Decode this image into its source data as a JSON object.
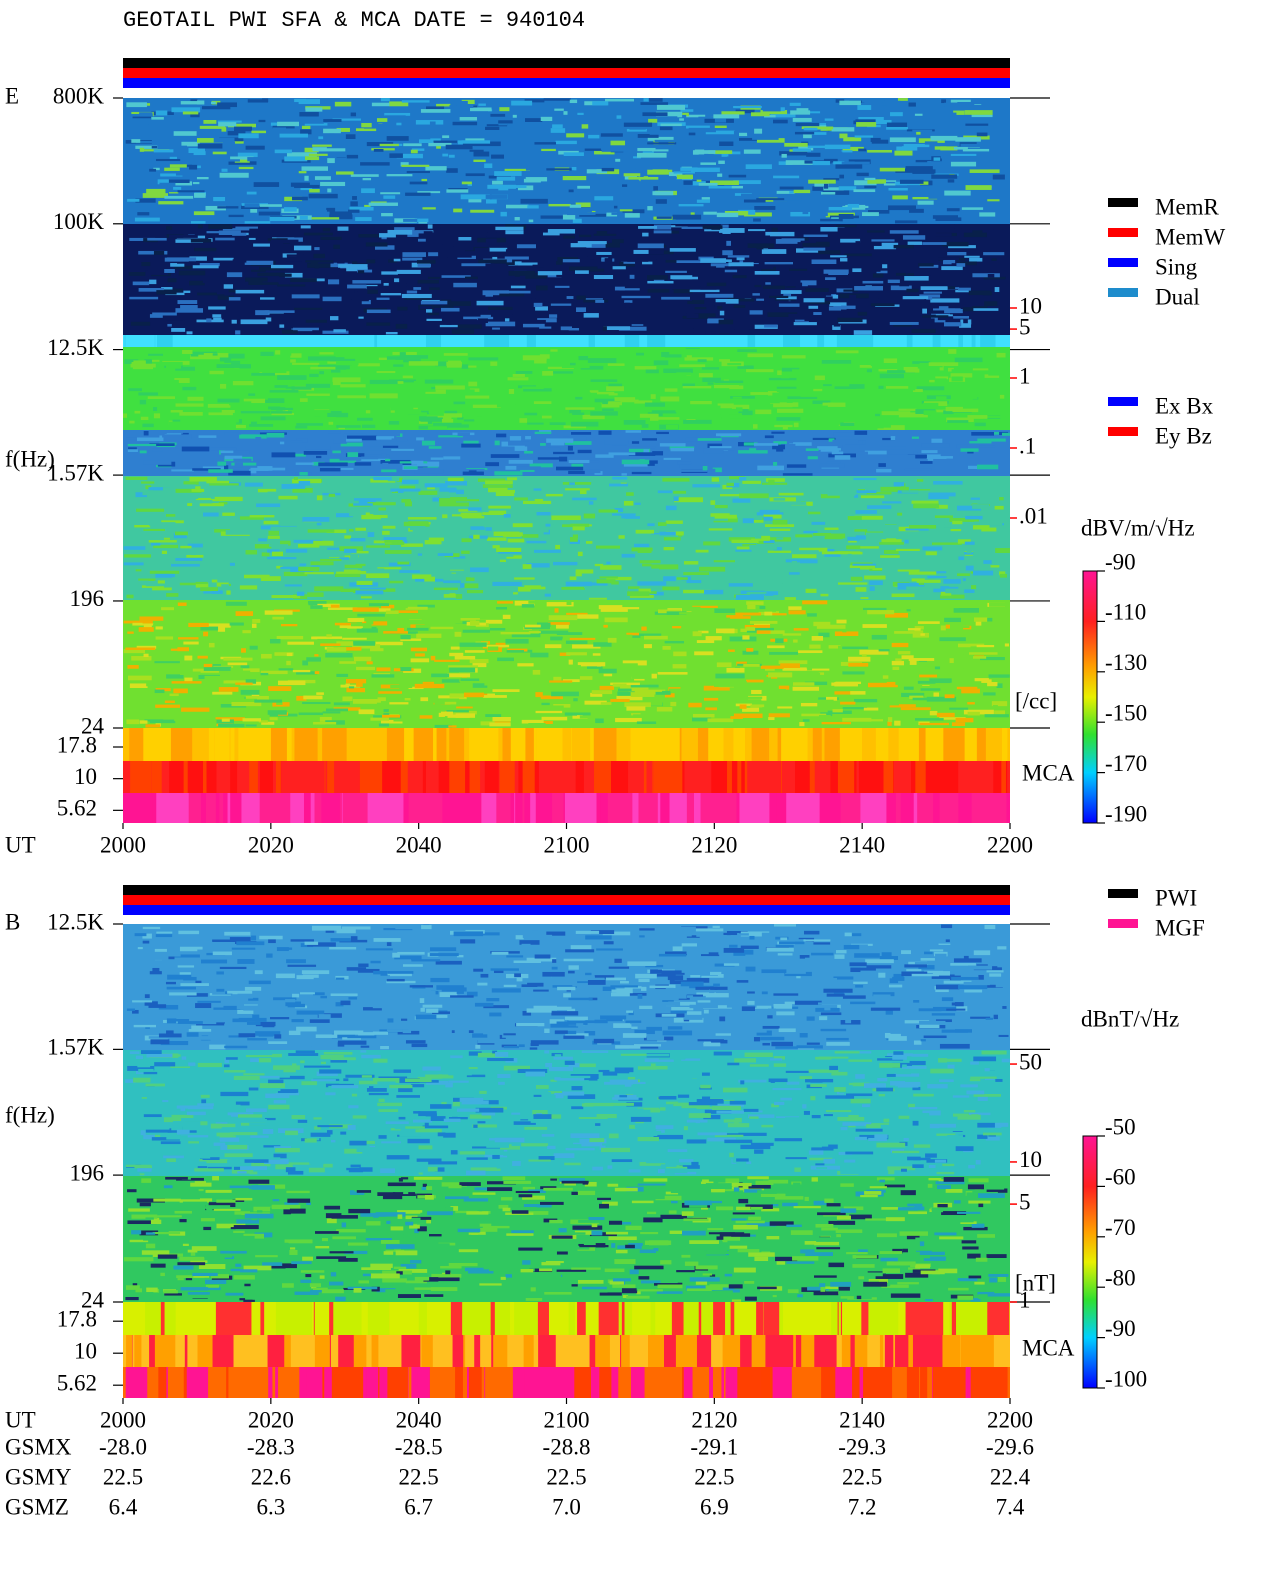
{
  "title": "GEOTAIL  PWI SFA & MCA   DATE = 940104",
  "chart_data": [
    {
      "type": "spectrogram",
      "panel_label": "E",
      "y_label": "f(Hz)",
      "x_label": "UT",
      "log_y": true,
      "ylim": [
        24,
        800000
      ],
      "yticks": [
        {
          "value": 800000,
          "label": "800K"
        },
        {
          "value": 100000,
          "label": "100K"
        },
        {
          "value": 12500,
          "label": "12.5K"
        },
        {
          "value": 1570,
          "label": "1.57K"
        },
        196,
        24
      ],
      "mca_label": "MCA",
      "mca_channels": [
        17.8,
        10,
        5.62
      ],
      "xlim": [
        0,
        120
      ],
      "xticks": [
        {
          "value": 0,
          "label": "2000"
        },
        {
          "value": 20,
          "label": "2020"
        },
        {
          "value": 40,
          "label": "2040"
        },
        {
          "value": 60,
          "label": "2100"
        },
        {
          "value": 80,
          "label": "2120"
        },
        {
          "value": 100,
          "label": "2140"
        },
        {
          "value": 120,
          "label": "2200"
        }
      ],
      "y2lim": [
        1e-05,
        10000
      ],
      "y2ticks": [
        10,
        5,
        1,
        {
          "value": 0.1,
          "label": ".1"
        },
        {
          "value": 0.01,
          "label": ".01"
        }
      ],
      "y2_label": "[/cc]",
      "y2_color": "#ff0000",
      "colorbar": {
        "label": "dBV/m/√Hz",
        "clim": [
          -190,
          -90
        ],
        "ticks": [
          -90,
          -110,
          -130,
          -150,
          -170,
          -190
        ]
      },
      "legend": [
        {
          "name": "MemR",
          "color": "#000000"
        },
        {
          "name": "MemW",
          "color": "#ff0000"
        },
        {
          "name": "Sing",
          "color": "#0000ff"
        },
        {
          "name": "Dual",
          "color": "#1e8ccc"
        }
      ],
      "legend2": [
        {
          "name": "Ex Bx",
          "color": "#0000ff"
        },
        {
          "name": "Ey Bz",
          "color": "#ff0000"
        }
      ]
    },
    {
      "type": "spectrogram",
      "panel_label": "B",
      "y_label": "f(Hz)",
      "x_label": "UT",
      "log_y": true,
      "ylim": [
        24,
        12500
      ],
      "yticks": [
        {
          "value": 12500,
          "label": "12.5K"
        },
        {
          "value": 1570,
          "label": "1.57K"
        },
        196,
        24
      ],
      "mca_label": "MCA",
      "mca_channels": [
        17.8,
        10,
        5.62
      ],
      "xlim": [
        0,
        120
      ],
      "xticks": [
        {
          "value": 0,
          "label": "2000"
        },
        {
          "value": 20,
          "label": "2020"
        },
        {
          "value": 40,
          "label": "2040"
        },
        {
          "value": 60,
          "label": "2100"
        },
        {
          "value": 80,
          "label": "2120"
        },
        {
          "value": 100,
          "label": "2140"
        },
        {
          "value": 120,
          "label": "2200"
        }
      ],
      "y2lim": [
        1,
        500
      ],
      "y2ticks": [
        50,
        10,
        5,
        1
      ],
      "y2_label": "[nT]",
      "y2_color": "#ff0000",
      "colorbar": {
        "label": "dBnT/√Hz",
        "clim": [
          -100,
          -50
        ],
        "ticks": [
          -50,
          -60,
          -70,
          -80,
          -90,
          -100
        ]
      },
      "legend": [
        {
          "name": "PWI",
          "color": "#000000"
        },
        {
          "name": "MGF",
          "color": "#ff1493"
        }
      ]
    }
  ],
  "ephemeris": {
    "rows": [
      {
        "label": "GSMX",
        "values": [
          "-28.0",
          "-28.3",
          "-28.5",
          "-28.8",
          "-29.1",
          "-29.3",
          "-29.6"
        ]
      },
      {
        "label": "GSMY",
        "values": [
          "22.5",
          "22.6",
          "22.5",
          "22.5",
          "22.5",
          "22.5",
          "22.4"
        ]
      },
      {
        "label": "GSMZ",
        "values": [
          "6.4",
          "6.3",
          "6.7",
          "7.0",
          "6.9",
          "7.2",
          "7.4"
        ]
      }
    ]
  }
}
